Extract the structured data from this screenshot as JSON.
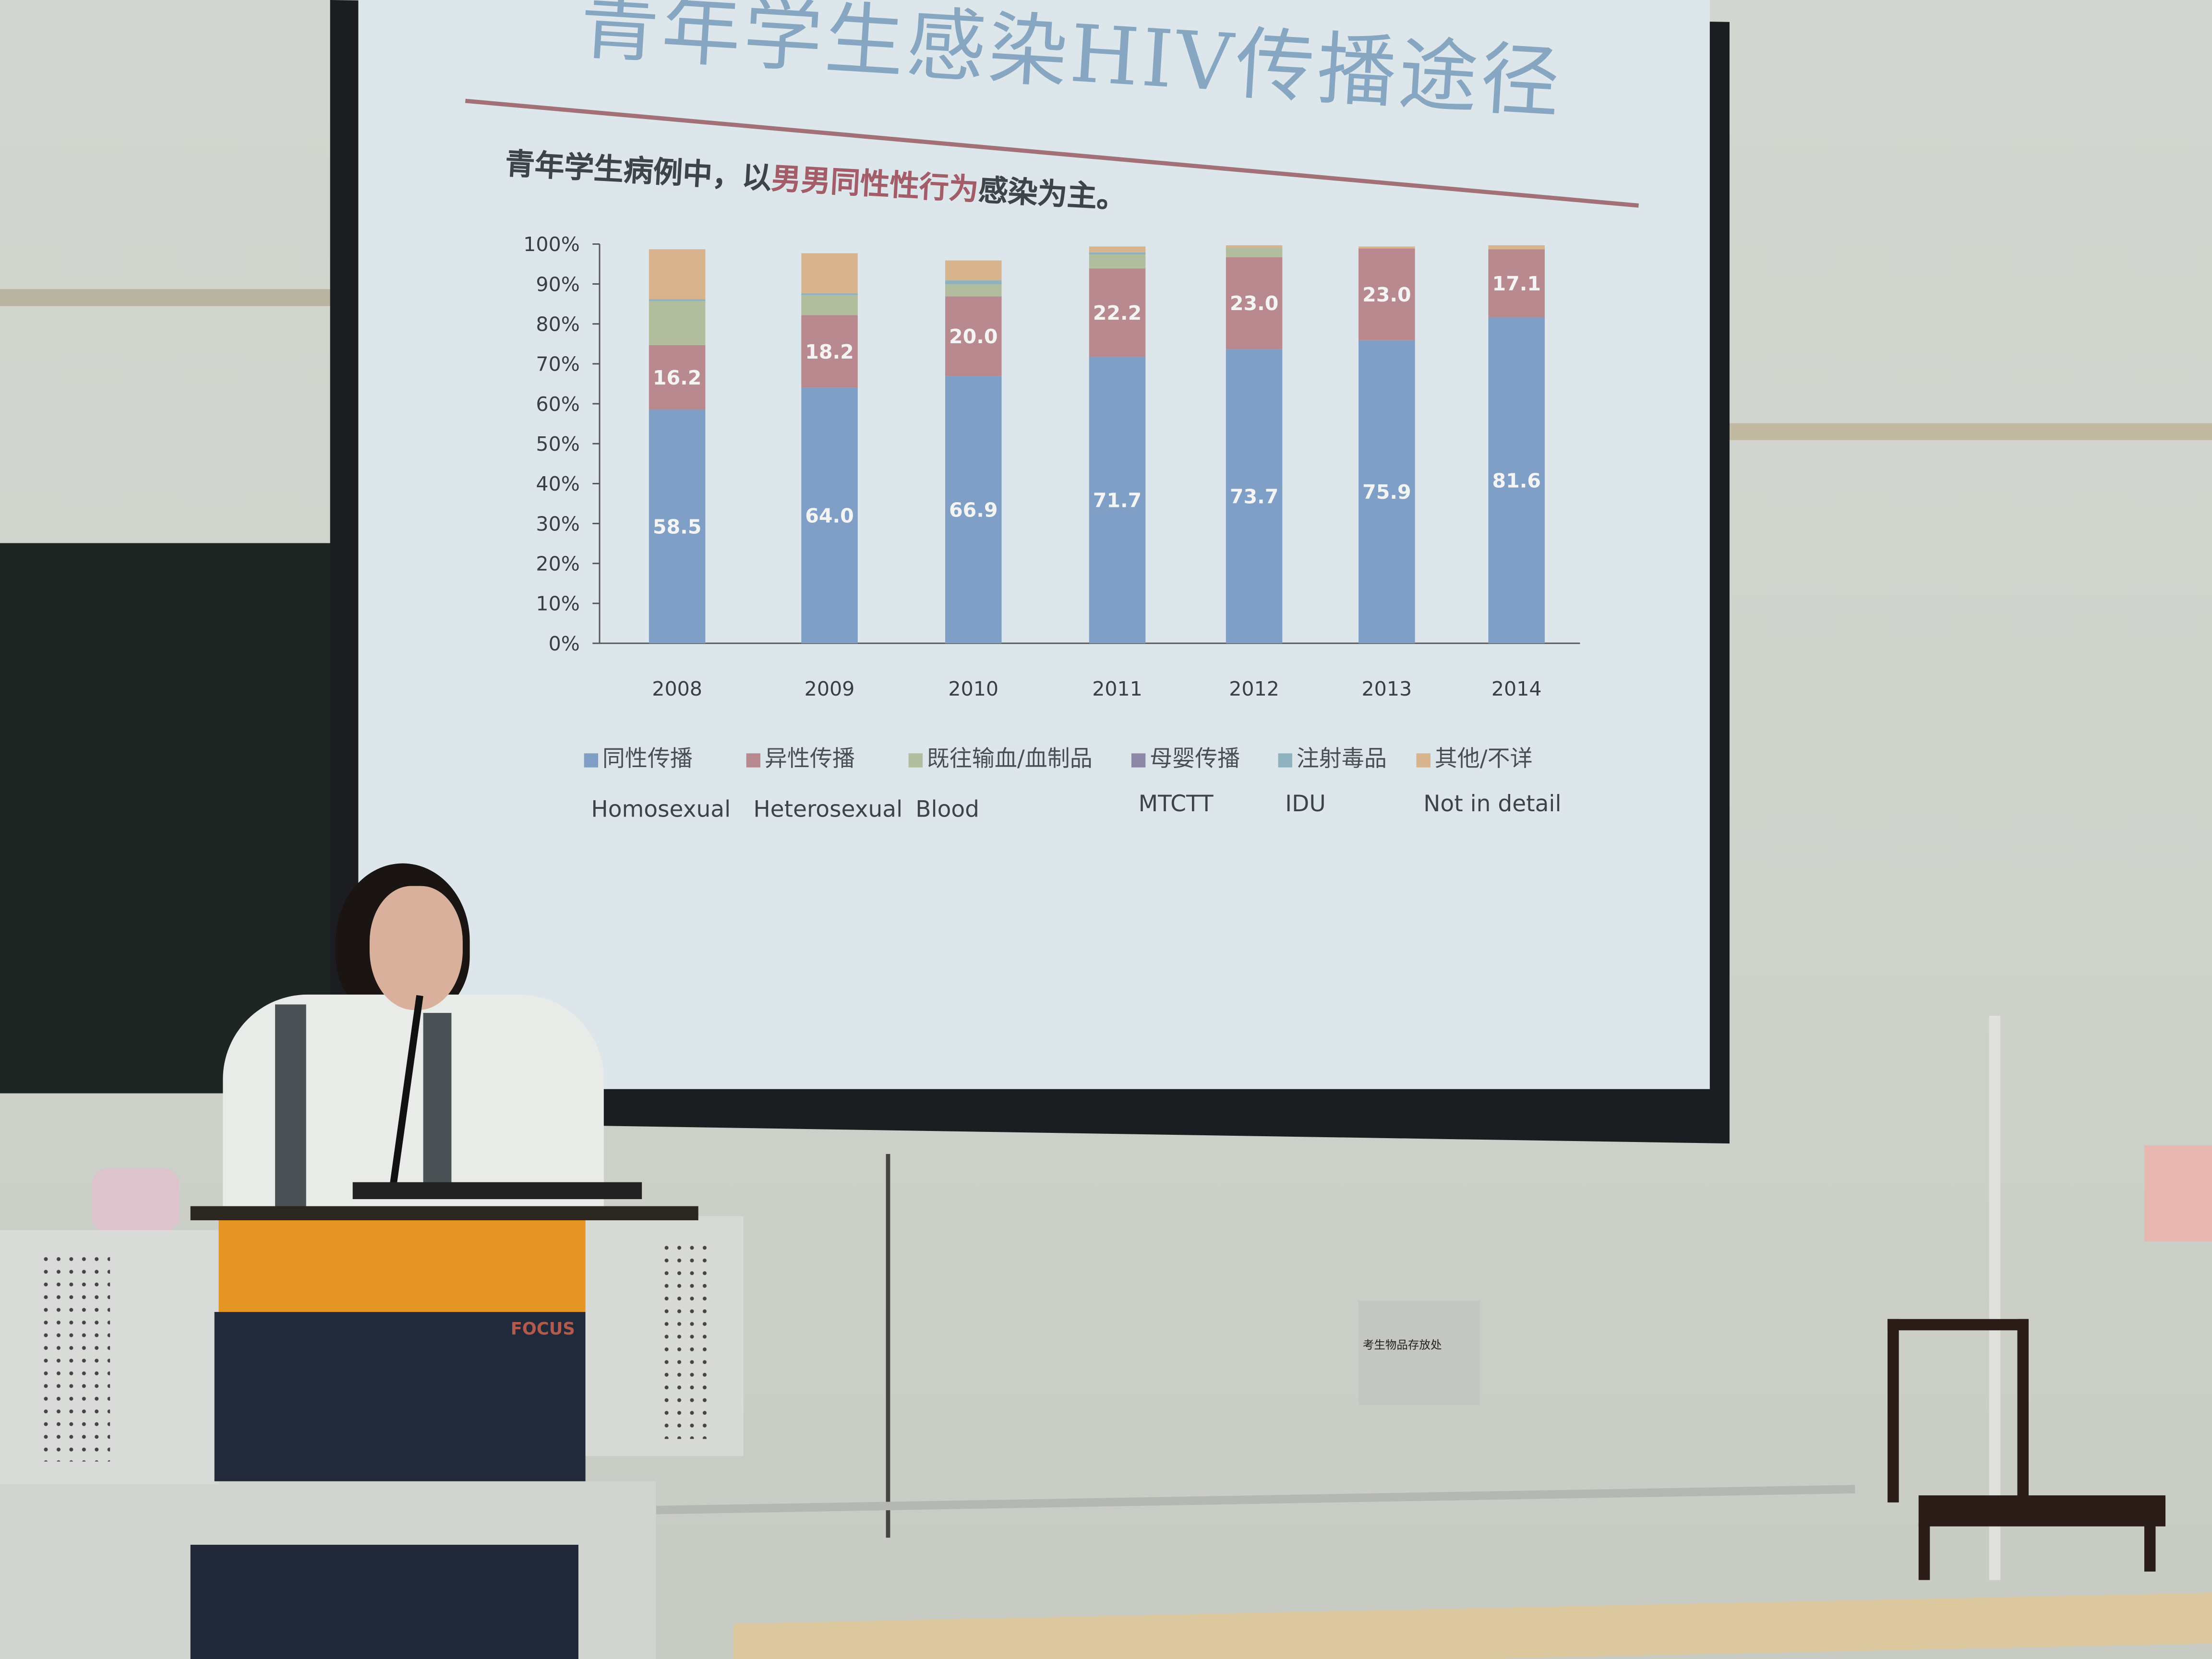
{
  "slide": {
    "title": "青年学生感染HIV传播途径",
    "subtitle_prefix": "青年学生病例中，以",
    "subtitle_highlight": "男男同性性行为",
    "subtitle_suffix": "感染为主。"
  },
  "chart_data": {
    "type": "bar",
    "stacked": true,
    "categories": [
      "2008",
      "2009",
      "2010",
      "2011",
      "2012",
      "2013",
      "2014"
    ],
    "ylim": [
      0,
      100
    ],
    "y_ticks": [
      "0%",
      "10%",
      "20%",
      "30%",
      "40%",
      "50%",
      "60%",
      "70%",
      "80%",
      "90%",
      "100%"
    ],
    "grid": false,
    "legend_position": "bottom",
    "series": [
      {
        "name": "同性传播",
        "name_en": "Homosexual",
        "color": "#7f9fc6",
        "values": [
          58.5,
          64.0,
          66.9,
          71.7,
          73.7,
          75.9,
          81.6
        ],
        "labels": [
          "58.5",
          "64.0",
          "66.9",
          "71.7",
          "73.7",
          "75.9",
          "81.6"
        ]
      },
      {
        "name": "异性传播",
        "name_en": "Heterosexual",
        "color": "#b98990",
        "values": [
          16.2,
          18.2,
          20.0,
          22.2,
          23.0,
          23.0,
          17.1
        ],
        "labels": [
          "16.2",
          "18.2",
          "20.0",
          "22.2",
          "23.0",
          "23.0",
          "17.1"
        ]
      },
      {
        "name": "既往输血/血制品",
        "name_en": "Blood",
        "color": "#b2bd9d",
        "values": [
          11,
          5,
          3,
          3.5,
          2.5,
          0,
          0
        ]
      },
      {
        "name": "母婴传播",
        "name_en": "MTCTT",
        "color": "#8e88a8",
        "values": [
          0,
          0,
          0,
          0,
          0,
          0,
          0
        ]
      },
      {
        "name": "注射毒品",
        "name_en": "IDU",
        "color": "#8fb3be",
        "values": [
          0.5,
          0.5,
          1,
          0.5,
          0,
          0,
          0
        ]
      },
      {
        "name": "其他/不详",
        "name_en": "Not in detail",
        "color": "#d7b48e",
        "values": [
          12.5,
          10,
          5,
          1.5,
          0.5,
          0.5,
          1
        ]
      }
    ]
  },
  "room": {
    "wall_sign": "考生物品存放处",
    "podium_logo": "FOCUS"
  }
}
